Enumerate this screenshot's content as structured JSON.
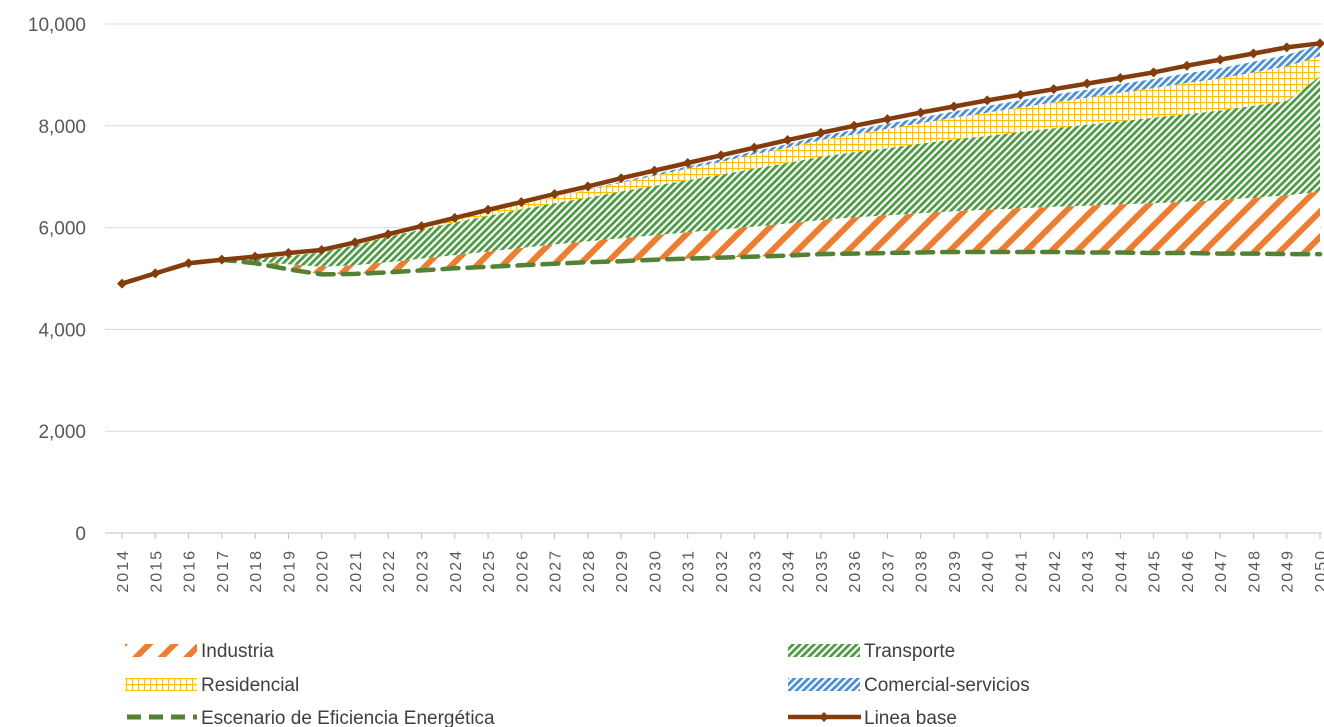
{
  "chart_data": {
    "type": "area",
    "x": [
      "2014",
      "2015",
      "2016",
      "2017",
      "2018",
      "2019",
      "2020",
      "2021",
      "2022",
      "2023",
      "2024",
      "2025",
      "2026",
      "2027",
      "2028",
      "2029",
      "2030",
      "2031",
      "2032",
      "2033",
      "2034",
      "2035",
      "2036",
      "2037",
      "2038",
      "2039",
      "2040",
      "2041",
      "2042",
      "2043",
      "2044",
      "2045",
      "2046",
      "2047",
      "2048",
      "2049",
      "2050"
    ],
    "ylim": [
      0,
      10000
    ],
    "yticks": [
      "0",
      "2,000",
      "4,000",
      "6,000",
      "8,000",
      "10,000"
    ],
    "ytick_values": [
      0,
      2000,
      4000,
      6000,
      8000,
      10000
    ],
    "grid": true,
    "legend_position": "bottom",
    "series": [
      {
        "name": "Escenario de Eficiencia Energética",
        "kind": "line",
        "style": "dashed",
        "color": "#548235",
        "values": [
          4900,
          5100,
          5300,
          5370,
          5300,
          5180,
          5080,
          5090,
          5120,
          5160,
          5200,
          5230,
          5260,
          5290,
          5320,
          5340,
          5370,
          5390,
          5410,
          5430,
          5450,
          5480,
          5490,
          5500,
          5510,
          5520,
          5520,
          5520,
          5520,
          5510,
          5510,
          5500,
          5500,
          5490,
          5490,
          5480,
          5480
        ]
      },
      {
        "name": "Industria",
        "kind": "area",
        "pattern": "wide-diagonal",
        "color": "#ed7d31",
        "values": [
          0,
          0,
          0,
          0,
          40,
          100,
          150,
          170,
          200,
          230,
          260,
          300,
          340,
          380,
          410,
          450,
          480,
          520,
          550,
          590,
          630,
          670,
          710,
          740,
          770,
          800,
          830,
          860,
          890,
          920,
          950,
          980,
          1010,
          1050,
          1100,
          1150,
          1230
        ]
      },
      {
        "name": "Transporte",
        "kind": "area",
        "pattern": "dark-diagonal",
        "color": "#70ad47",
        "values": [
          0,
          0,
          0,
          0,
          50,
          160,
          280,
          390,
          500,
          570,
          640,
          700,
          760,
          810,
          860,
          920,
          970,
          1020,
          1080,
          1140,
          1190,
          1240,
          1280,
          1320,
          1370,
          1410,
          1450,
          1500,
          1540,
          1590,
          1630,
          1680,
          1720,
          1760,
          1800,
          1860,
          2260
        ]
      },
      {
        "name": "Residencial",
        "kind": "area",
        "pattern": "grid",
        "color": "#ffc000",
        "values": [
          0,
          0,
          0,
          0,
          0,
          0,
          0,
          0,
          20,
          40,
          60,
          80,
          100,
          120,
          150,
          170,
          200,
          230,
          250,
          280,
          300,
          330,
          350,
          380,
          400,
          430,
          460,
          480,
          510,
          530,
          560,
          580,
          610,
          630,
          660,
          680,
          400
        ]
      },
      {
        "name": "Comercial-servicios",
        "kind": "area",
        "pattern": "dark-diagonal",
        "color": "#5b9bd5",
        "values": [
          0,
          0,
          0,
          0,
          0,
          0,
          0,
          0,
          0,
          0,
          0,
          0,
          0,
          0,
          10,
          20,
          30,
          40,
          50,
          60,
          70,
          80,
          90,
          100,
          110,
          120,
          130,
          140,
          150,
          160,
          170,
          180,
          190,
          200,
          210,
          220,
          230
        ]
      },
      {
        "name": "Linea base",
        "kind": "line",
        "style": "solid-marker",
        "color": "#843c0c",
        "values": [
          4900,
          5100,
          5300,
          5370,
          5430,
          5500,
          5560,
          5710,
          5870,
          6030,
          6190,
          6350,
          6500,
          6660,
          6810,
          6970,
          7120,
          7270,
          7420,
          7570,
          7720,
          7860,
          8000,
          8130,
          8260,
          8380,
          8500,
          8610,
          8720,
          8830,
          8940,
          9050,
          9180,
          9300,
          9420,
          9540,
          9620
        ]
      }
    ]
  },
  "legend": [
    {
      "label": "Industria",
      "swatch": "industria"
    },
    {
      "label": "Transporte",
      "swatch": "transporte"
    },
    {
      "label": "Residencial",
      "swatch": "residencial"
    },
    {
      "label": "Comercial-servicios",
      "swatch": "comercial"
    },
    {
      "label": "Escenario de Eficiencia Energética",
      "swatch": "eficiencia"
    },
    {
      "label": "Linea base",
      "swatch": "base"
    }
  ]
}
